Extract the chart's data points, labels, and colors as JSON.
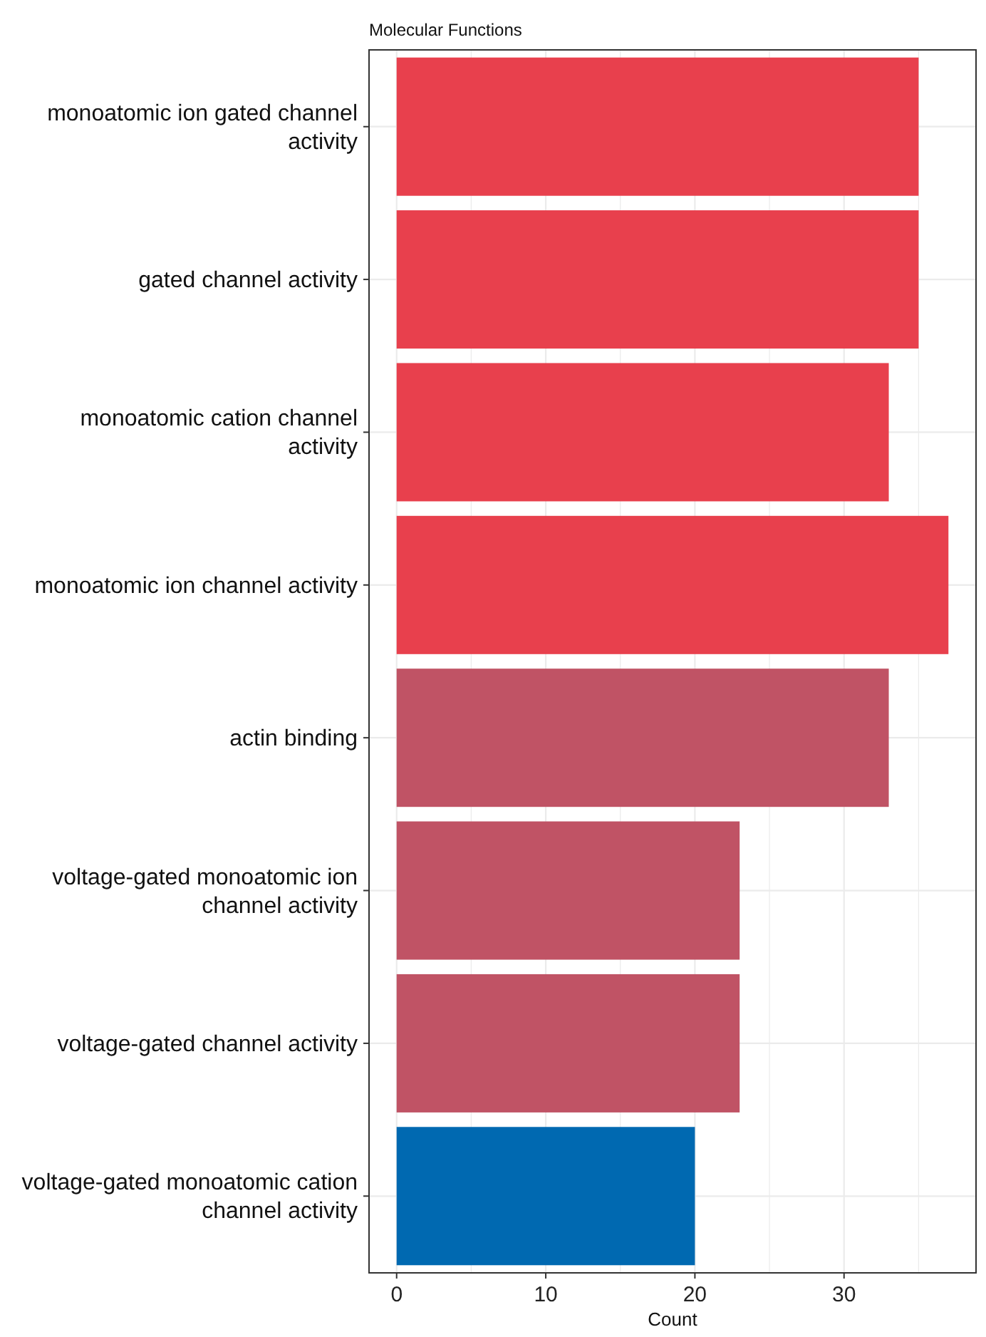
{
  "chart_data": {
    "type": "bar",
    "orientation": "horizontal",
    "title": "Molecular Functions",
    "xlabel": "Count",
    "categories": [
      "monoatomic ion gated channel activity",
      "gated channel activity",
      "monoatomic cation channel activity",
      "monoatomic ion channel activity",
      "actin binding",
      "voltage-gated monoatomic ion channel activity",
      "voltage-gated channel activity",
      "voltage-gated monoatomic cation channel activity"
    ],
    "values": [
      35,
      35,
      33,
      37,
      33,
      23,
      23,
      20
    ],
    "colors": [
      "#e8404d",
      "#e8404d",
      "#e8404d",
      "#e8404d",
      "#c05365",
      "#c05365",
      "#c05365",
      "#0069b1"
    ],
    "xlim": [
      -1.85,
      38.85
    ],
    "xticks": [
      0,
      {
        "value": 5,
        "label": null
      },
      10,
      {
        "value": 15,
        "label": null
      },
      20,
      {
        "value": 25,
        "label": null
      },
      30,
      {
        "value": 35,
        "label": null
      }
    ],
    "grid": true
  }
}
